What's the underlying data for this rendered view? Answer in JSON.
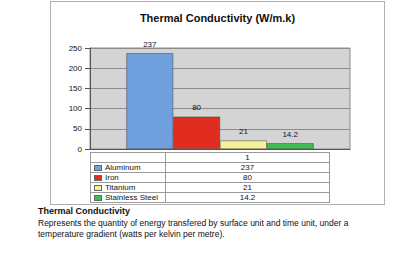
{
  "chart_data": {
    "type": "bar",
    "title": "Thermal Conductivity (W/m.k)",
    "categories": [
      "1"
    ],
    "series": [
      {
        "name": "Aluminum",
        "color": "#6f9fdc",
        "values": [
          237
        ]
      },
      {
        "name": "Iron",
        "color": "#e02d1f",
        "values": [
          80
        ]
      },
      {
        "name": "Titanium",
        "color": "#f5f09a",
        "values": [
          21
        ]
      },
      {
        "name": "Stainless Steel",
        "color": "#3dbd52",
        "values": [
          14.2
        ]
      }
    ],
    "ylim": [
      0,
      250
    ],
    "yticks": [
      0,
      50,
      100,
      150,
      200,
      250
    ],
    "grid": true,
    "data_labels": true
  },
  "caption": {
    "heading": "Thermal Conductivity",
    "text": "Represents the quantity of energy transfered by surface unit and time unit, under a temperature gradient (watts per kelvin per metre)."
  }
}
